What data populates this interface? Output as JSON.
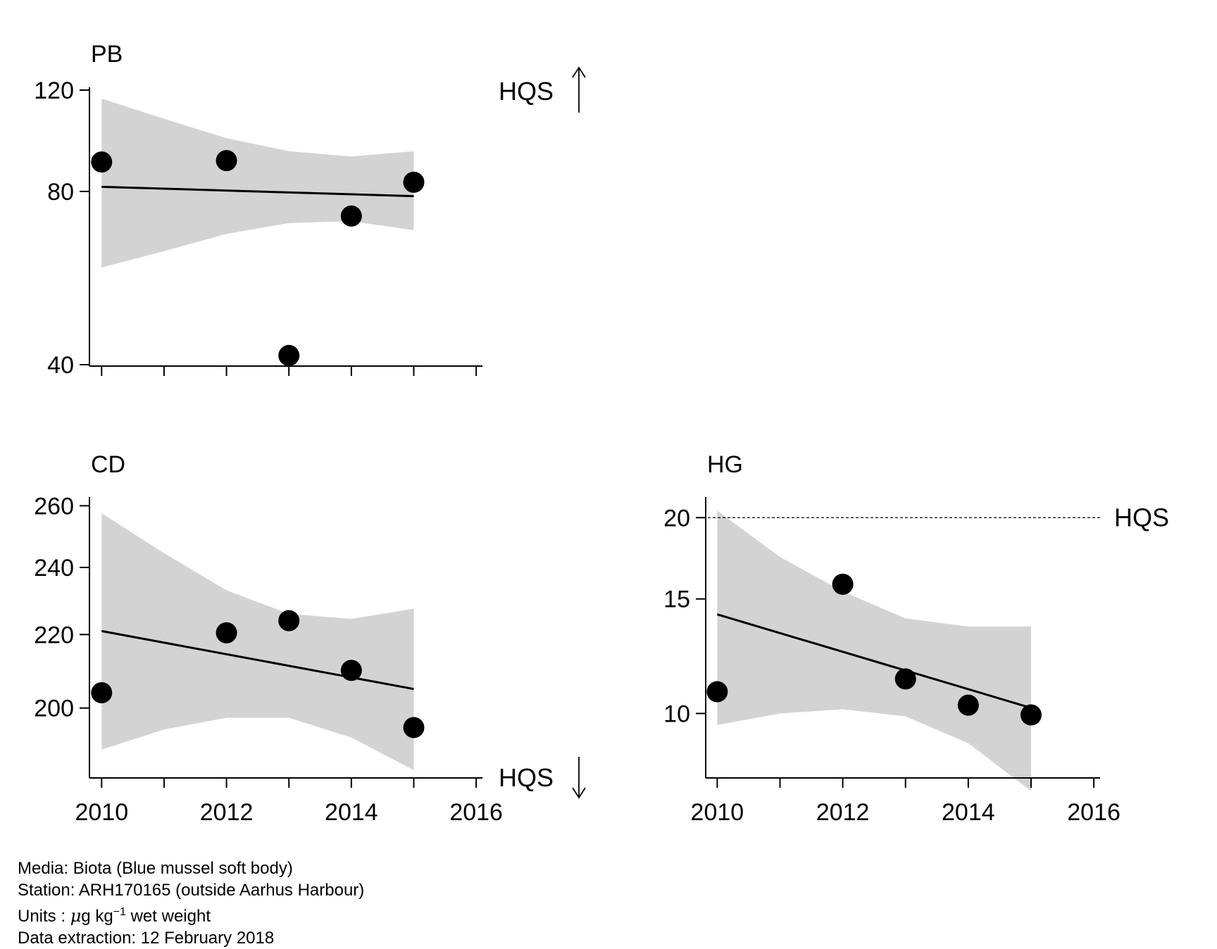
{
  "chart_data": [
    {
      "type": "scatter",
      "title": "PB",
      "xlabel": "",
      "ylabel": "",
      "scale": "log",
      "xlim": [
        2009.85,
        2016.1
      ],
      "ylim": [
        40,
        120
      ],
      "x_ticks": [
        2010,
        2011,
        2012,
        2013,
        2014,
        2015,
        2016
      ],
      "x_tick_labels": [],
      "y_ticks": [
        40,
        80,
        120
      ],
      "y_tick_labels": [
        "40",
        "80",
        "120"
      ],
      "points": [
        {
          "x": 2010,
          "y": 90
        },
        {
          "x": 2012,
          "y": 90.5
        },
        {
          "x": 2013,
          "y": 41.5
        },
        {
          "x": 2014,
          "y": 72.5
        },
        {
          "x": 2015,
          "y": 83
        }
      ],
      "trend": {
        "x": [
          2010,
          2015
        ],
        "y": [
          81.5,
          78.5
        ]
      },
      "band": {
        "x": [
          2010,
          2011,
          2012,
          2013,
          2014,
          2015
        ],
        "lower": [
          59,
          63,
          67.5,
          70.5,
          71,
          68.5
        ],
        "upper": [
          116,
          107,
          99,
          94,
          92,
          94
        ]
      },
      "hqs": {
        "label": "HQS",
        "mode": "above"
      }
    },
    {
      "type": "scatter",
      "title": "CD",
      "xlabel": "",
      "ylabel": "",
      "scale": "log",
      "xlim": [
        2009.85,
        2016.1
      ],
      "ylim": [
        183,
        262
      ],
      "x_ticks": [
        2010,
        2011,
        2012,
        2013,
        2014,
        2015,
        2016
      ],
      "x_tick_labels": [
        "2010",
        "2012",
        "2014",
        "2016"
      ],
      "y_ticks": [
        200,
        220,
        240,
        260
      ],
      "y_tick_labels": [
        "200",
        "220",
        "240",
        "260"
      ],
      "points": [
        {
          "x": 2010,
          "y": 204
        },
        {
          "x": 2012,
          "y": 220.5
        },
        {
          "x": 2013,
          "y": 224
        },
        {
          "x": 2014,
          "y": 210
        },
        {
          "x": 2015,
          "y": 195
        }
      ],
      "trend": {
        "x": [
          2010,
          2015
        ],
        "y": [
          221,
          205
        ]
      },
      "band": {
        "x": [
          2010,
          2011,
          2012,
          2013,
          2014,
          2015
        ],
        "lower": [
          189.5,
          194.5,
          197.5,
          197.5,
          192.5,
          184.5
        ],
        "upper": [
          257.5,
          244.5,
          233,
          226,
          224.5,
          227.5
        ]
      },
      "hqs": {
        "label": "HQS",
        "mode": "below"
      }
    },
    {
      "type": "scatter",
      "title": "HG",
      "xlabel": "",
      "ylabel": "",
      "scale": "log",
      "xlim": [
        2009.85,
        2016.1
      ],
      "ylim": [
        8.0,
        21.3
      ],
      "x_ticks": [
        2010,
        2011,
        2012,
        2013,
        2014,
        2015,
        2016
      ],
      "x_tick_labels": [
        "2010",
        "2012",
        "2014",
        "2016"
      ],
      "y_ticks": [
        10,
        15,
        20
      ],
      "y_tick_labels": [
        "10",
        "15",
        "20"
      ],
      "points": [
        {
          "x": 2010,
          "y": 10.8
        },
        {
          "x": 2012,
          "y": 15.8
        },
        {
          "x": 2013,
          "y": 11.3
        },
        {
          "x": 2014,
          "y": 10.3
        },
        {
          "x": 2015,
          "y": 9.95
        }
      ],
      "trend": {
        "x": [
          2010,
          2015
        ],
        "y": [
          14.2,
          10.2
        ]
      },
      "band": {
        "x": [
          2010,
          2011,
          2012,
          2013,
          2014,
          2015
        ],
        "lower": [
          9.6,
          10.0,
          10.15,
          9.9,
          9.0,
          7.6
        ],
        "upper": [
          20.5,
          17.4,
          15.4,
          14.0,
          13.6,
          13.6
        ]
      },
      "hqs": {
        "label": "HQS",
        "mode": "line",
        "value": 20
      }
    }
  ],
  "footer": {
    "media": "Media: Biota (Blue mussel soft body)",
    "station": "Station: ARH170165 (outside Aarhus Harbour)",
    "units_prefix": "Units : ",
    "units_mu": "μ",
    "units_kg": "g kg",
    "units_exp": "−1",
    "units_suffix": " wet weight",
    "extraction": "Data extraction: 12 February 2018"
  }
}
